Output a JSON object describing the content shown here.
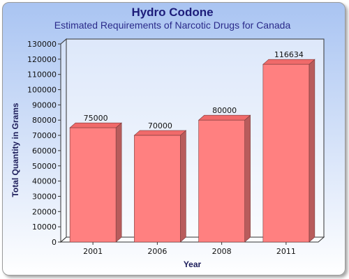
{
  "chart_data": {
    "type": "bar",
    "title": "Hydro Codone",
    "subtitle": "Estimated Requirements of Narcotic Drugs for Canada",
    "xlabel": "Year",
    "ylabel": "Total Quantity in Grams",
    "categories": [
      "2001",
      "2006",
      "2008",
      "2011"
    ],
    "values": [
      75000,
      70000,
      80000,
      116634
    ],
    "data_labels": [
      "75000",
      "70000",
      "80000",
      "116634"
    ],
    "ylim": [
      0,
      130000
    ],
    "yticks": [
      "0",
      "10000",
      "20000",
      "30000",
      "40000",
      "50000",
      "60000",
      "70000",
      "80000",
      "90000",
      "100000",
      "110000",
      "120000",
      "130000"
    ],
    "grid": false,
    "legend": "none",
    "colors": {
      "bar_front": "#ff8080",
      "bar_side": "#b85c5c",
      "bar_top": "#f06a6a",
      "title": "#1d1d7a",
      "background_top": "#a9c4f2"
    }
  }
}
